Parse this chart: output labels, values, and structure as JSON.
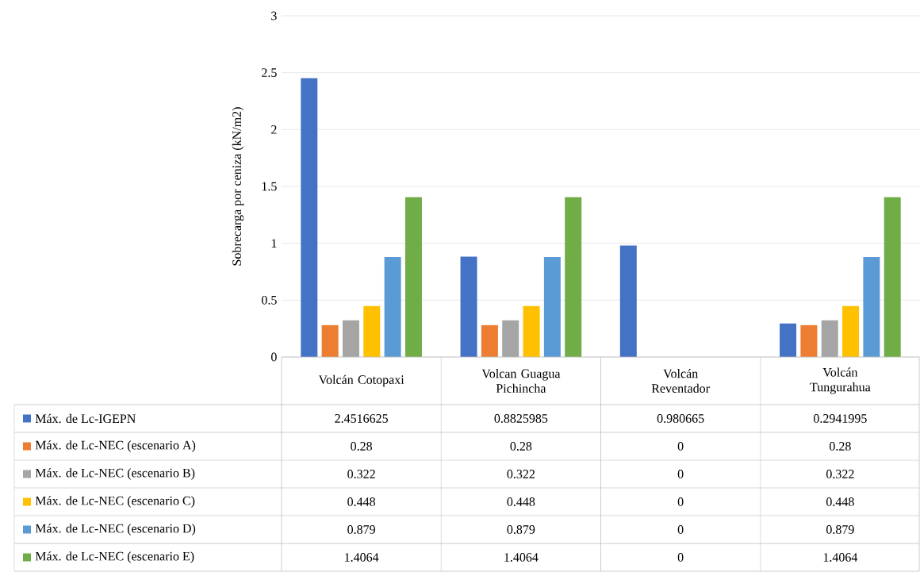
{
  "chart_data": {
    "type": "bar",
    "ylabel": "Sobrecarga por ceniza (kN/m2)",
    "categories": [
      "Volcán Cotopaxi",
      "Volcan Guagua Pichincha",
      "Volcán Reventador",
      "Volcán Tungurahua"
    ],
    "series": [
      {
        "name": "Máx. de Lc-IGEPN",
        "color": "#4472c4",
        "values": [
          2.4516625,
          0.8825985,
          0.980665,
          0.2941995
        ]
      },
      {
        "name": "Máx. de Lc-NEC (escenario A)",
        "color": "#ed7d31",
        "values": [
          0.28,
          0.28,
          0,
          0.28
        ]
      },
      {
        "name": "Máx. de Lc-NEC (escenario B)",
        "color": "#a5a5a5",
        "values": [
          0.322,
          0.322,
          0,
          0.322
        ]
      },
      {
        "name": "Máx. de Lc-NEC (escenario C)",
        "color": "#ffc000",
        "values": [
          0.448,
          0.448,
          0,
          0.448
        ]
      },
      {
        "name": "Máx. de Lc-NEC (escenario D)",
        "color": "#5b9bd5",
        "values": [
          0.879,
          0.879,
          0,
          0.879
        ]
      },
      {
        "name": "Máx. de Lc-NEC (escenario E)",
        "color": "#70ad47",
        "values": [
          1.4064,
          1.4064,
          0,
          1.4064
        ]
      }
    ],
    "ylim": [
      0,
      3
    ],
    "yticks": [
      0,
      0.5,
      1,
      1.5,
      2,
      2.5,
      3
    ],
    "grid": "y",
    "data_labels": true,
    "legend": "bottom"
  }
}
